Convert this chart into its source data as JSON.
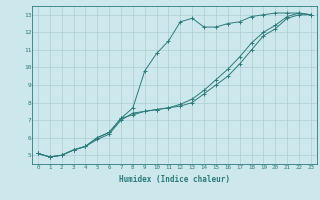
{
  "xlabel": "Humidex (Indice chaleur)",
  "ylabel": "",
  "xlim": [
    -0.5,
    23.5
  ],
  "ylim": [
    4.5,
    13.5
  ],
  "xticks": [
    0,
    1,
    2,
    3,
    4,
    5,
    6,
    7,
    8,
    9,
    10,
    11,
    12,
    13,
    14,
    15,
    16,
    17,
    18,
    19,
    20,
    21,
    22,
    23
  ],
  "yticks": [
    5,
    6,
    7,
    8,
    9,
    10,
    11,
    12,
    13
  ],
  "bg_color": "#cce8ec",
  "line_color": "#2d7a7a",
  "grid_color": "#aacdd4",
  "line1_x": [
    0,
    1,
    2,
    3,
    4,
    5,
    6,
    7,
    8,
    9,
    10,
    11,
    12,
    13,
    14,
    15,
    16,
    17,
    18,
    19,
    20,
    21,
    22,
    23
  ],
  "line1_y": [
    5.1,
    4.9,
    5.0,
    5.3,
    5.5,
    6.0,
    6.3,
    7.1,
    7.7,
    9.8,
    10.8,
    11.5,
    12.6,
    12.8,
    12.3,
    12.3,
    12.5,
    12.6,
    12.9,
    13.0,
    13.1,
    13.1,
    13.1,
    13.0
  ],
  "line2_x": [
    0,
    1,
    2,
    3,
    4,
    5,
    6,
    7,
    8,
    9,
    10,
    11,
    12,
    13,
    14,
    15,
    16,
    17,
    18,
    19,
    20,
    21,
    22,
    23
  ],
  "line2_y": [
    5.1,
    4.9,
    5.0,
    5.3,
    5.5,
    5.9,
    6.2,
    7.0,
    7.4,
    7.5,
    7.6,
    7.7,
    7.8,
    8.0,
    8.5,
    9.0,
    9.5,
    10.2,
    11.0,
    11.8,
    12.2,
    12.8,
    13.0,
    13.0
  ],
  "line3_x": [
    0,
    1,
    2,
    3,
    4,
    5,
    6,
    7,
    8,
    9,
    10,
    11,
    12,
    13,
    14,
    15,
    16,
    17,
    18,
    19,
    20,
    21,
    22,
    23
  ],
  "line3_y": [
    5.1,
    4.9,
    5.0,
    5.3,
    5.5,
    6.0,
    6.3,
    7.1,
    7.3,
    7.5,
    7.6,
    7.7,
    7.9,
    8.2,
    8.7,
    9.3,
    9.9,
    10.6,
    11.4,
    12.0,
    12.4,
    12.9,
    13.1,
    13.0
  ]
}
